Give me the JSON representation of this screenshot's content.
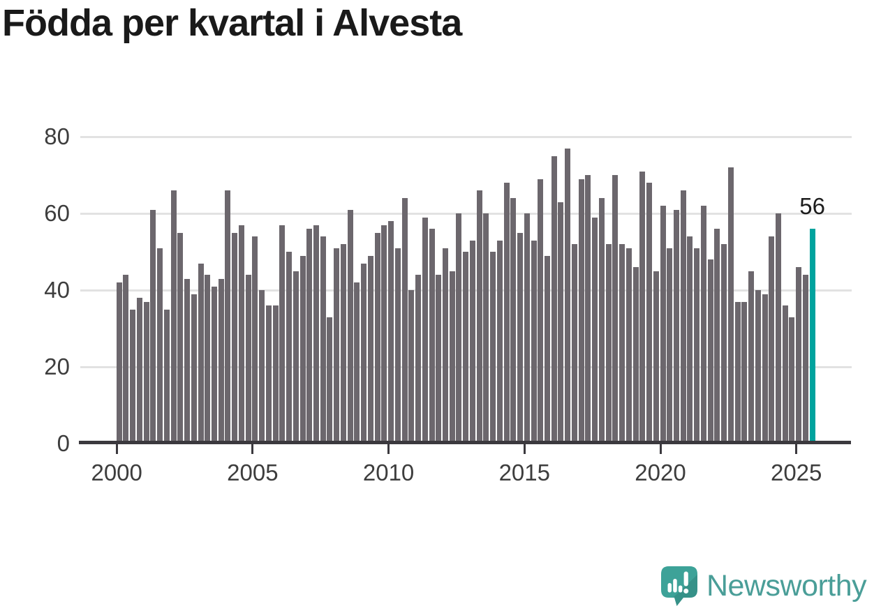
{
  "title": "Födda per kvartal i Alvesta",
  "chart_data": {
    "type": "bar",
    "title": "Födda per kvartal i Alvesta",
    "x_tick_labels": [
      "2000",
      "2005",
      "2010",
      "2015",
      "2020",
      "2025"
    ],
    "y_ticks": [
      0,
      20,
      40,
      60,
      80
    ],
    "ylim": [
      0,
      80
    ],
    "grid": "horizontal",
    "legend": "none",
    "bar_color": "#6c676d",
    "highlight_color": "#00a39e",
    "series_note": "quarterly values 2000Q1-2025Q3, last bar highlighted",
    "years": [
      {
        "year": 2000,
        "values": [
          42,
          44,
          35,
          38
        ]
      },
      {
        "year": 2001,
        "values": [
          37,
          61,
          51,
          35
        ]
      },
      {
        "year": 2002,
        "values": [
          66,
          55,
          43,
          39
        ]
      },
      {
        "year": 2003,
        "values": [
          47,
          44,
          41,
          43
        ]
      },
      {
        "year": 2004,
        "values": [
          66,
          55,
          57,
          44
        ]
      },
      {
        "year": 2005,
        "values": [
          54,
          40,
          36,
          36
        ]
      },
      {
        "year": 2006,
        "values": [
          57,
          50,
          45,
          49
        ]
      },
      {
        "year": 2007,
        "values": [
          56,
          57,
          54,
          33
        ]
      },
      {
        "year": 2008,
        "values": [
          51,
          52,
          61,
          42
        ]
      },
      {
        "year": 2009,
        "values": [
          47,
          49,
          55,
          57
        ]
      },
      {
        "year": 2010,
        "values": [
          58,
          51,
          64,
          40
        ]
      },
      {
        "year": 2011,
        "values": [
          44,
          59,
          56,
          44
        ]
      },
      {
        "year": 2012,
        "values": [
          51,
          45,
          60,
          50
        ]
      },
      {
        "year": 2013,
        "values": [
          53,
          66,
          60,
          50
        ]
      },
      {
        "year": 2014,
        "values": [
          53,
          68,
          64,
          55
        ]
      },
      {
        "year": 2015,
        "values": [
          60,
          53,
          69,
          49
        ]
      },
      {
        "year": 2016,
        "values": [
          75,
          63,
          77,
          52
        ]
      },
      {
        "year": 2017,
        "values": [
          69,
          70,
          59,
          64
        ]
      },
      {
        "year": 2018,
        "values": [
          52,
          70,
          52,
          51
        ]
      },
      {
        "year": 2019,
        "values": [
          46,
          71,
          68,
          45
        ]
      },
      {
        "year": 2020,
        "values": [
          62,
          51,
          61,
          66
        ]
      },
      {
        "year": 2021,
        "values": [
          54,
          51,
          62,
          48
        ]
      },
      {
        "year": 2022,
        "values": [
          56,
          52,
          72,
          37
        ]
      },
      {
        "year": 2023,
        "values": [
          37,
          45,
          40,
          39
        ]
      },
      {
        "year": 2024,
        "values": [
          54,
          60,
          36,
          33
        ]
      },
      {
        "year": 2025,
        "values": [
          46,
          44,
          56
        ]
      }
    ],
    "highlight": {
      "label": "56",
      "value": 56,
      "period": "2025 Q3"
    }
  },
  "branding": {
    "logo_text": "Newsworthy",
    "logo_icon": "bar-chart-speech-bubble-icon",
    "logo_icon_color": "#3da298",
    "logo_text_color": "#4a9e98"
  }
}
